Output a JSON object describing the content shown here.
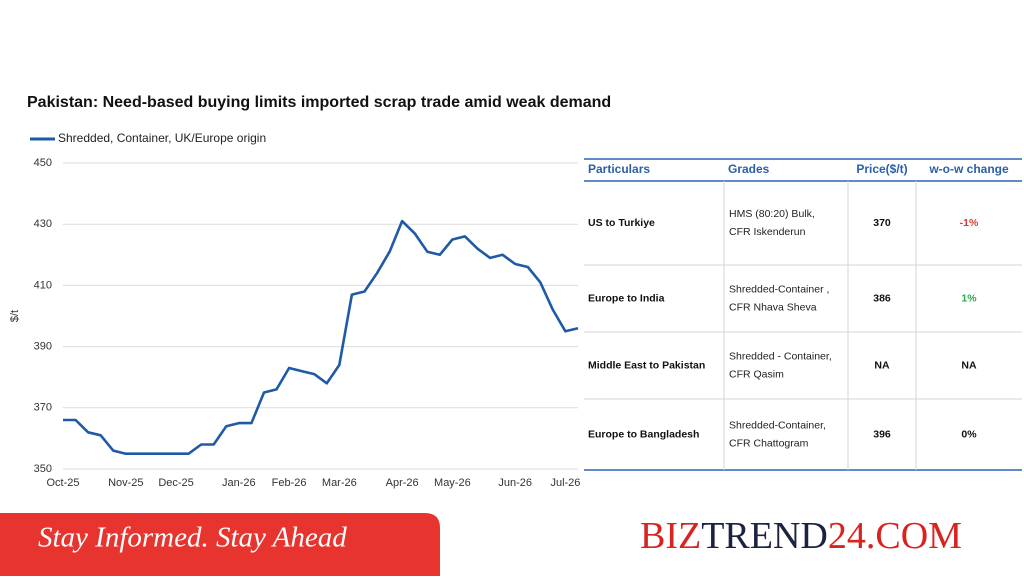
{
  "chart_data": {
    "type": "line",
    "title": "Pakistan: Need-based buying limits imported scrap trade amid weak demand",
    "ylabel": "$/t",
    "categories": [
      "Oct-25",
      null,
      null,
      null,
      null,
      "Nov-25",
      null,
      null,
      null,
      "Dec-25",
      null,
      null,
      null,
      null,
      "Jan-26",
      null,
      null,
      null,
      "Feb-26",
      null,
      null,
      null,
      "Mar-26",
      null,
      null,
      null,
      null,
      "Apr-26",
      null,
      null,
      null,
      "May-26",
      null,
      null,
      null,
      null,
      "Jun-26",
      null,
      null,
      null,
      "Jul-26",
      null
    ],
    "series": [
      {
        "name": "Shredded, Container, UK/Europe origin",
        "color": "#1f5aa6",
        "values": [
          366,
          366,
          362,
          361,
          356,
          355,
          355,
          355,
          355,
          355,
          355,
          358,
          358,
          364,
          365,
          365,
          375,
          376,
          383,
          382,
          381,
          378,
          384,
          407,
          408,
          414,
          421,
          431,
          427,
          421,
          420,
          425,
          426,
          422,
          419,
          420,
          417,
          416,
          411,
          402,
          395,
          396
        ]
      }
    ],
    "ylim": [
      350,
      450
    ],
    "yticks": [
      350,
      370,
      390,
      410,
      430,
      450
    ],
    "grid": true
  },
  "table": {
    "header": [
      "Particulars",
      "Grades",
      "Price($/t)",
      "w-o-w change"
    ],
    "rows": [
      [
        "US to Turkiye",
        [
          "HMS (80:20) Bulk,",
          "CFR Iskenderun"
        ],
        370,
        "-1%"
      ],
      [
        "Europe to India",
        [
          "Shredded-Container ,",
          "CFR Nhava Sheva"
        ],
        386,
        "1%"
      ],
      [
        "Middle East to Pakistan",
        [
          "Shredded - Container,",
          "CFR Qasim"
        ],
        "NA",
        "NA"
      ],
      [
        "Europe to Bangladesh",
        [
          "Shredded-Container,",
          "CFR Chattogram"
        ],
        396,
        "0%"
      ]
    ]
  },
  "banner": {
    "slogan": "Stay Informed. Stay Ahead",
    "brand": [
      "BIZ",
      "TREND",
      "24.COM"
    ]
  }
}
